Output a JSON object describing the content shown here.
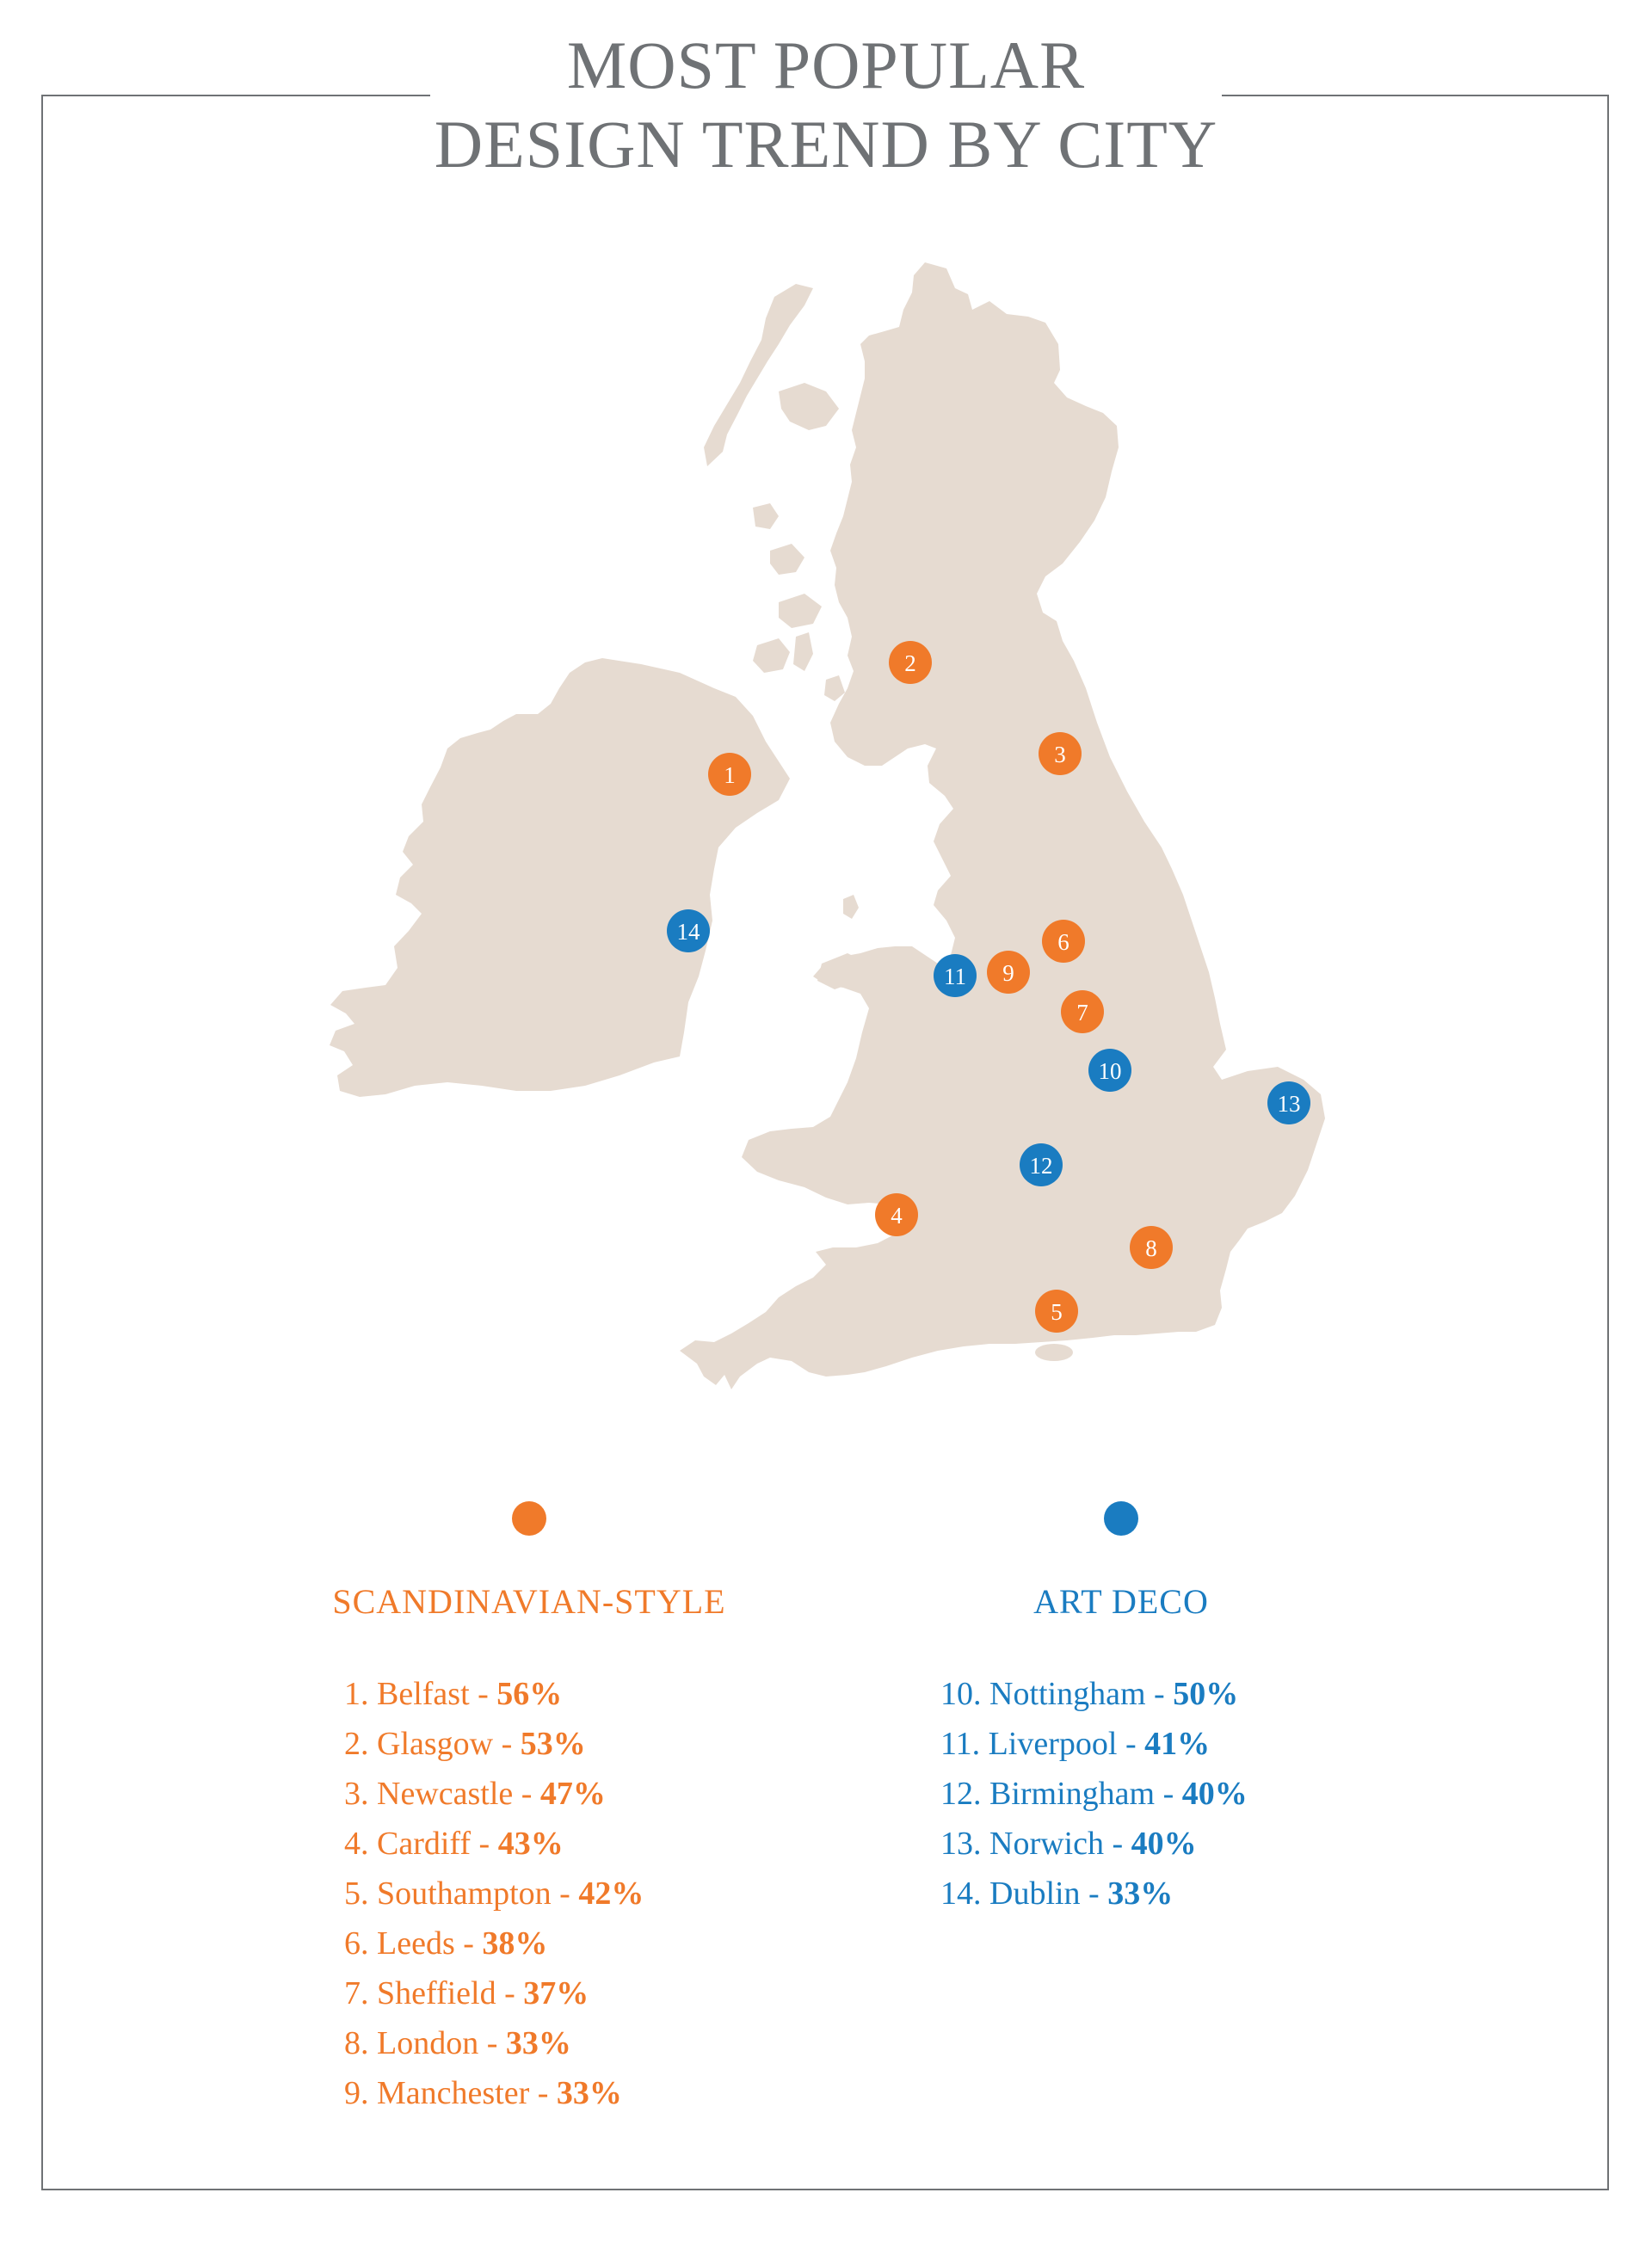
{
  "title": {
    "line1": "MOST POPULAR",
    "line2": "DESIGN TREND BY CITY"
  },
  "colors": {
    "scandinavian": "#f07a2a",
    "art_deco": "#1a7cc1",
    "land": "#e6dbd1",
    "frame": "#6f7275",
    "title": "#6f7275"
  },
  "legend": {
    "scandinavian": {
      "heading": "SCANDINAVIAN-STYLE",
      "items": [
        {
          "label": "1. Belfast - ",
          "pct": "56%"
        },
        {
          "label": "2. Glasgow - ",
          "pct": "53%"
        },
        {
          "label": "3. Newcastle - ",
          "pct": "47%"
        },
        {
          "label": "4. Cardiff - ",
          "pct": "43%"
        },
        {
          "label": "5. Southampton - ",
          "pct": "42%"
        },
        {
          "label": "6. Leeds - ",
          "pct": "38%"
        },
        {
          "label": "7. Sheffield - ",
          "pct": "37%"
        },
        {
          "label": "8. London - ",
          "pct": "33%"
        },
        {
          "label": "9. Manchester - ",
          "pct": "33%"
        }
      ]
    },
    "art_deco": {
      "heading": "ART DECO",
      "items": [
        {
          "label": "10. Nottingham - ",
          "pct": "50%"
        },
        {
          "label": "11. Liverpool - ",
          "pct": "41%"
        },
        {
          "label": "12. Birmingham - ",
          "pct": "40%"
        },
        {
          "label": "13. Norwich - ",
          "pct": "40%"
        },
        {
          "label": "14. Dublin - ",
          "pct": "33%"
        }
      ]
    }
  },
  "markers": [
    {
      "num": "1",
      "trend": "scandinavian"
    },
    {
      "num": "2",
      "trend": "scandinavian"
    },
    {
      "num": "3",
      "trend": "scandinavian"
    },
    {
      "num": "4",
      "trend": "scandinavian"
    },
    {
      "num": "5",
      "trend": "scandinavian"
    },
    {
      "num": "6",
      "trend": "scandinavian"
    },
    {
      "num": "7",
      "trend": "scandinavian"
    },
    {
      "num": "8",
      "trend": "scandinavian"
    },
    {
      "num": "9",
      "trend": "scandinavian"
    },
    {
      "num": "10",
      "trend": "art_deco"
    },
    {
      "num": "11",
      "trend": "art_deco"
    },
    {
      "num": "12",
      "trend": "art_deco"
    },
    {
      "num": "13",
      "trend": "art_deco"
    },
    {
      "num": "14",
      "trend": "art_deco"
    }
  ]
}
